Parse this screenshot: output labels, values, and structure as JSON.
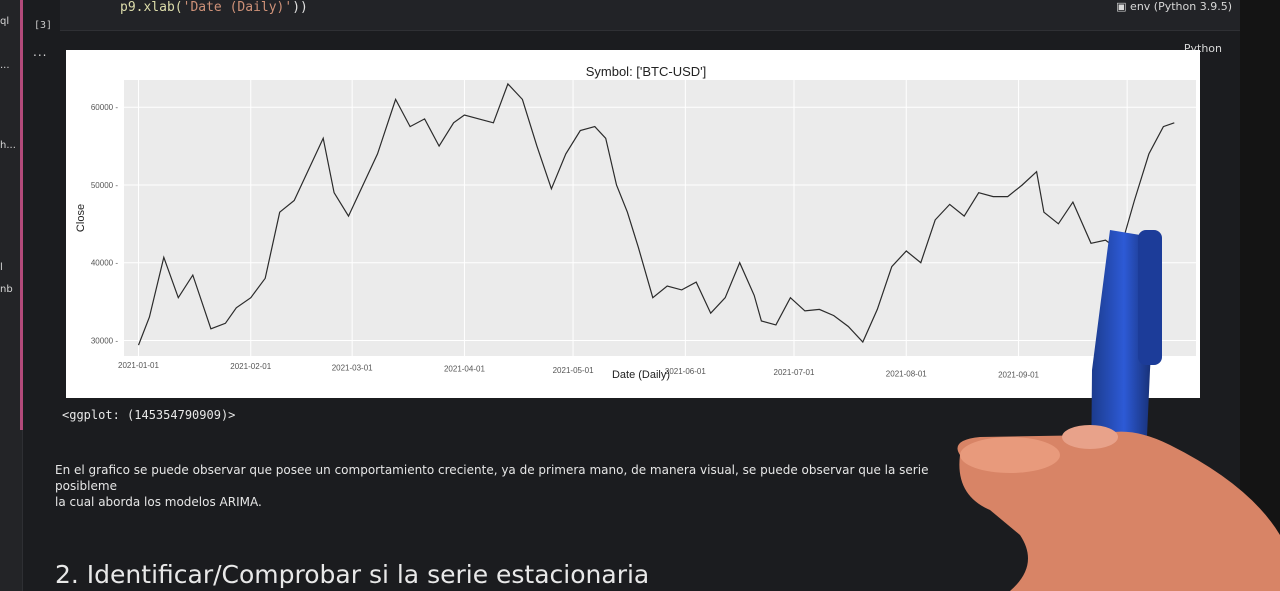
{
  "code_cell": {
    "prefix": "p9.xlab(",
    "arg": "'Date (Daily)'",
    "suffix": "))",
    "execution_count": "[3]"
  },
  "kernel_label": "env (Python 3.9.5)",
  "output": {
    "dots": "...",
    "language_label": "Python",
    "repr": "<ggplot: (145354790909)>"
  },
  "markdown_text": {
    "line1": "En el grafico se puede observar que posee un comportamiento creciente, ya de primera mano, de manera visual, se puede observar que la serie posibleme",
    "line2": "la cual aborda los modelos ARIMA."
  },
  "section_heading": "2. Identificar/Comprobar si la serie estacionaria",
  "chart_data": {
    "type": "line",
    "title": "Symbol: ['BTC-USD']",
    "xlabel": "Date (Daily)",
    "ylabel": "Close",
    "x_ticks": [
      "2021-01-01",
      "2021-02-01",
      "2021-03-01",
      "2021-04-01",
      "2021-05-01",
      "2021-06-01",
      "2021-07-01",
      "2021-08-01",
      "2021-09-01",
      "20"
    ],
    "y_ticks": [
      30000,
      40000,
      50000,
      60000
    ],
    "ylim": [
      28000,
      63500
    ],
    "grid": true,
    "series": [
      {
        "x": [
          "2021-01-01",
          "2021-01-04",
          "2021-01-08",
          "2021-01-12",
          "2021-01-16",
          "2021-01-21",
          "2021-01-25",
          "2021-01-28",
          "2021-02-01",
          "2021-02-05",
          "2021-02-09",
          "2021-02-13",
          "2021-02-17",
          "2021-02-21",
          "2021-02-24",
          "2021-02-28",
          "2021-03-04",
          "2021-03-08",
          "2021-03-13",
          "2021-03-17",
          "2021-03-21",
          "2021-03-25",
          "2021-03-29",
          "2021-04-01",
          "2021-04-05",
          "2021-04-09",
          "2021-04-13",
          "2021-04-17",
          "2021-04-21",
          "2021-04-25",
          "2021-04-29",
          "2021-05-03",
          "2021-05-07",
          "2021-05-10",
          "2021-05-13",
          "2021-05-16",
          "2021-05-19",
          "2021-05-23",
          "2021-05-27",
          "2021-05-31",
          "2021-06-04",
          "2021-06-08",
          "2021-06-12",
          "2021-06-16",
          "2021-06-20",
          "2021-06-22",
          "2021-06-26",
          "2021-06-30",
          "2021-07-04",
          "2021-07-08",
          "2021-07-12",
          "2021-07-16",
          "2021-07-20",
          "2021-07-24",
          "2021-07-28",
          "2021-08-01",
          "2021-08-05",
          "2021-08-09",
          "2021-08-13",
          "2021-08-17",
          "2021-08-21",
          "2021-08-25",
          "2021-08-29",
          "2021-09-02",
          "2021-09-06",
          "2021-09-08",
          "2021-09-12",
          "2021-09-16",
          "2021-09-21",
          "2021-09-25",
          "2021-09-29",
          "2021-10-03",
          "2021-10-07",
          "2021-10-11",
          "2021-10-14"
        ],
        "values": [
          29400,
          33000,
          40700,
          35500,
          38400,
          31500,
          32200,
          34200,
          35500,
          38000,
          46500,
          48000,
          52000,
          56000,
          49000,
          46000,
          50000,
          54000,
          61000,
          57500,
          58500,
          55000,
          58000,
          59000,
          58500,
          58000,
          63000,
          61000,
          55000,
          49500,
          54000,
          57000,
          57500,
          56000,
          50000,
          46500,
          42000,
          35500,
          37000,
          36500,
          37500,
          33500,
          35500,
          40000,
          35800,
          32500,
          32000,
          35500,
          33800,
          34000,
          33200,
          31800,
          29800,
          34000,
          39500,
          41500,
          40000,
          45500,
          47500,
          46000,
          49000,
          48500,
          48500,
          50000,
          51700,
          46500,
          45000,
          47800,
          42500,
          42900,
          41500,
          48000,
          54000,
          57500,
          58000
        ]
      }
    ]
  }
}
